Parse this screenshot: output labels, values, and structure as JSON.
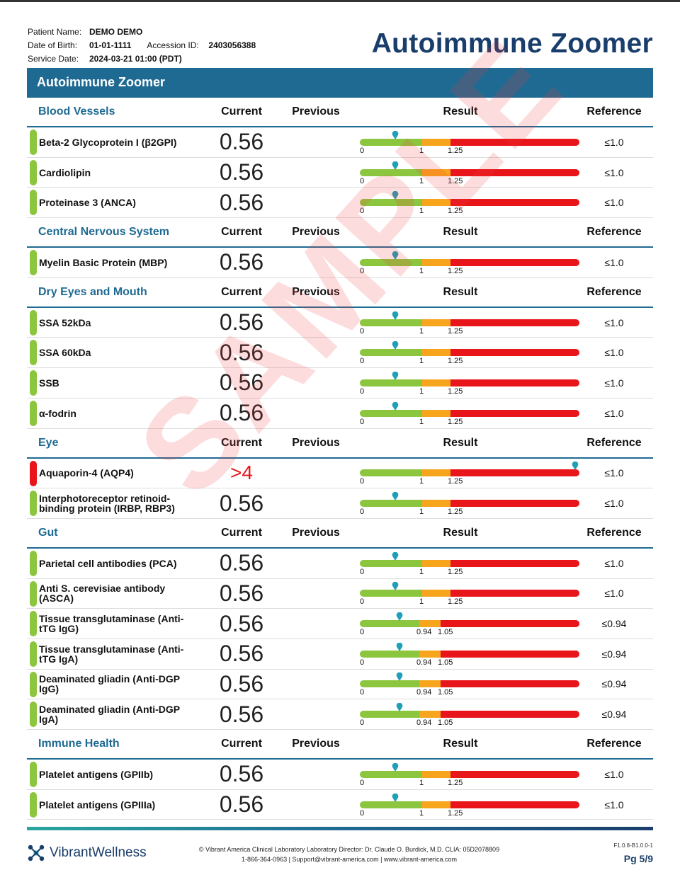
{
  "patient": {
    "name_label": "Patient Name:",
    "name": "DEMO DEMO",
    "dob_label": "Date of Birth:",
    "dob": "01-01-1111",
    "accession_label": "Accession ID:",
    "accession": "2403056388",
    "service_label": "Service Date:",
    "service_date": "2024-03-21 01:00 (PDT)"
  },
  "report_title": "Autoimmune Zoomer",
  "banner_title": "Autoimmune Zoomer",
  "columns": {
    "current": "Current",
    "previous": "Previous",
    "result": "Result",
    "reference": "Reference"
  },
  "colors": {
    "normal": "#8cc63f",
    "borderline": "#f7a51c",
    "high": "#e8151b",
    "pin": "#1f9fb8",
    "header": "#1f6a92"
  },
  "sections": [
    {
      "name": "Blood Vessels",
      "tests": [
        {
          "name": "Beta-2 Glycoprotein I (β2GPI)",
          "current": "0.56",
          "reference": "≤1.0",
          "flag": "normal",
          "ticks": [
            "0",
            "1",
            "1.25"
          ],
          "marker_fraction": 0.16,
          "scale": "a"
        },
        {
          "name": "Cardiolipin",
          "current": "0.56",
          "reference": "≤1.0",
          "flag": "normal",
          "ticks": [
            "0",
            "1",
            "1.25"
          ],
          "marker_fraction": 0.16,
          "scale": "a"
        },
        {
          "name": "Proteinase 3 (ANCA)",
          "current": "0.56",
          "reference": "≤1.0",
          "flag": "normal",
          "ticks": [
            "0",
            "1",
            "1.25"
          ],
          "marker_fraction": 0.16,
          "scale": "a"
        }
      ]
    },
    {
      "name": "Central Nervous System",
      "tests": [
        {
          "name": "Myelin Basic Protein (MBP)",
          "current": "0.56",
          "reference": "≤1.0",
          "flag": "normal",
          "ticks": [
            "0",
            "1",
            "1.25"
          ],
          "marker_fraction": 0.16,
          "scale": "a"
        }
      ]
    },
    {
      "name": "Dry Eyes and Mouth",
      "tests": [
        {
          "name": "SSA 52kDa",
          "current": "0.56",
          "reference": "≤1.0",
          "flag": "normal",
          "ticks": [
            "0",
            "1",
            "1.25"
          ],
          "marker_fraction": 0.16,
          "scale": "a"
        },
        {
          "name": "SSA 60kDa",
          "current": "0.56",
          "reference": "≤1.0",
          "flag": "normal",
          "ticks": [
            "0",
            "1",
            "1.25"
          ],
          "marker_fraction": 0.16,
          "scale": "a"
        },
        {
          "name": "SSB",
          "current": "0.56",
          "reference": "≤1.0",
          "flag": "normal",
          "ticks": [
            "0",
            "1",
            "1.25"
          ],
          "marker_fraction": 0.16,
          "scale": "a"
        },
        {
          "name": "α-fodrin",
          "current": "0.56",
          "reference": "≤1.0",
          "flag": "normal",
          "ticks": [
            "0",
            "1",
            "1.25"
          ],
          "marker_fraction": 0.16,
          "scale": "a"
        }
      ]
    },
    {
      "name": "Eye",
      "tests": [
        {
          "name": "Aquaporin-4 (AQP4)",
          "current": ">4",
          "reference": "≤1.0",
          "flag": "high",
          "ticks": [
            "0",
            "1",
            "1.25"
          ],
          "marker_fraction": 0.98,
          "scale": "a"
        },
        {
          "name": "Interphotoreceptor retinoid-binding protein (IRBP, RBP3)",
          "current": "0.56",
          "reference": "≤1.0",
          "flag": "normal",
          "ticks": [
            "0",
            "1",
            "1.25"
          ],
          "marker_fraction": 0.16,
          "scale": "a"
        }
      ]
    },
    {
      "name": "Gut",
      "tests": [
        {
          "name": "Parietal cell antibodies (PCA)",
          "current": "0.56",
          "reference": "≤1.0",
          "flag": "normal",
          "ticks": [
            "0",
            "1",
            "1.25"
          ],
          "marker_fraction": 0.16,
          "scale": "a"
        },
        {
          "name": "Anti S. cerevisiae antibody (ASCA)",
          "current": "0.56",
          "reference": "≤1.0",
          "flag": "normal",
          "ticks": [
            "0",
            "1",
            "1.25"
          ],
          "marker_fraction": 0.16,
          "scale": "a"
        },
        {
          "name": "Tissue transglutaminase (Anti-tTG IgG)",
          "current": "0.56",
          "reference": "≤0.94",
          "flag": "normal",
          "ticks": [
            "0",
            "0.94",
            "1.05"
          ],
          "marker_fraction": 0.18,
          "scale": "b"
        },
        {
          "name": "Tissue transglutaminase (Anti-tTG IgA)",
          "current": "0.56",
          "reference": "≤0.94",
          "flag": "normal",
          "ticks": [
            "0",
            "0.94",
            "1.05"
          ],
          "marker_fraction": 0.18,
          "scale": "b"
        },
        {
          "name": "Deaminated gliadin (Anti-DGP IgG)",
          "current": "0.56",
          "reference": "≤0.94",
          "flag": "normal",
          "ticks": [
            "0",
            "0.94",
            "1.05"
          ],
          "marker_fraction": 0.18,
          "scale": "b"
        },
        {
          "name": "Deaminated gliadin (Anti-DGP IgA)",
          "current": "0.56",
          "reference": "≤0.94",
          "flag": "normal",
          "ticks": [
            "0",
            "0.94",
            "1.05"
          ],
          "marker_fraction": 0.18,
          "scale": "b"
        }
      ]
    },
    {
      "name": "Immune Health",
      "tests": [
        {
          "name": "Platelet antigens (GPIIb)",
          "current": "0.56",
          "reference": "≤1.0",
          "flag": "normal",
          "ticks": [
            "0",
            "1",
            "1.25"
          ],
          "marker_fraction": 0.16,
          "scale": "a"
        },
        {
          "name": "Platelet antigens (GPIIIa)",
          "current": "0.56",
          "reference": "≤1.0",
          "flag": "normal",
          "ticks": [
            "0",
            "1",
            "1.25"
          ],
          "marker_fraction": 0.16,
          "scale": "a"
        }
      ]
    }
  ],
  "watermark": "SAMPLE",
  "footer": {
    "brand_a": "Vibrant",
    "brand_b": "Wellness",
    "line1": "Vibrant America Clinical Laboratory Laboratory Director: Dr. Claude O. Burdick, M.D. CLIA: 05D2078809",
    "line2": "1-866-364-0963 | Support@vibrant-america.com | www.vibrant-america.com",
    "version": "F1.0.8-B1.0.0-1",
    "page": "Pg 5/9"
  }
}
